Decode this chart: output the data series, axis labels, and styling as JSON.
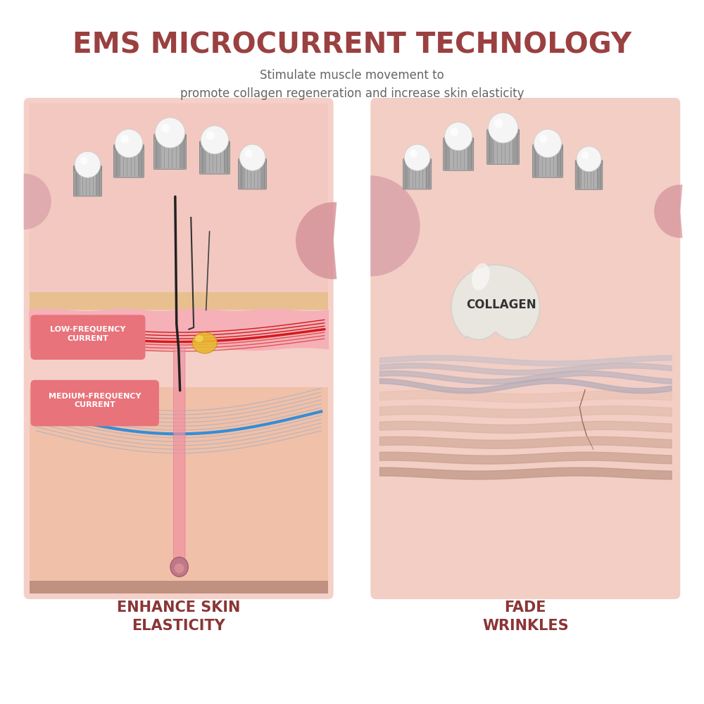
{
  "title": "EMS MICROCURRENT TECHNOLOGY",
  "subtitle": "Stimulate muscle movement to\npromote collagen regeneration and increase skin elasticity",
  "title_color": "#9B4040",
  "subtitle_color": "#666666",
  "bg_color": "#FFFFFF",
  "panel_bg_left": "#F5D0C8",
  "panel_bg_right": "#F2CEC5",
  "left_label": "ENHANCE SKIN\nELASTICITY",
  "right_label": "FADE\nWRINKLES",
  "label_color": "#8B3535",
  "low_freq_label": "LOW-FREQUENCY\nCURRENT",
  "med_freq_label": "MEDIUM-FREQUENCY\nCURRENT",
  "freq_label_bg": "#E8737A",
  "freq_label_text": "#FFFFFF",
  "collagen_text": "COLLAGEN",
  "collagen_text_color": "#333333",
  "skin_peach": "#F2C0A8",
  "skin_tan": "#E8C090",
  "skin_pink": "#F0A0A8",
  "skin_deep": "#D4907A",
  "dermis_pink": "#F5B0B8"
}
